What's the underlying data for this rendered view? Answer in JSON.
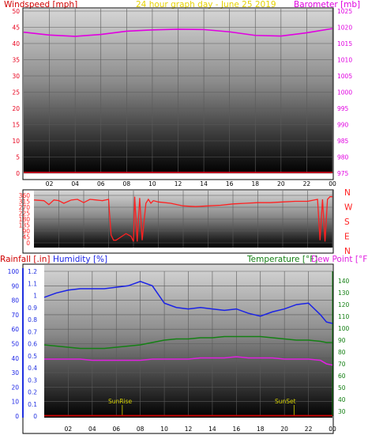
{
  "header": {
    "left_label": "Windspeed [mph]",
    "center_label": "24 hour graph day - June 25 2019",
    "right_label": "Barometer [mb]"
  },
  "colors": {
    "wind": "#e8001c",
    "barometer": "#e100e1",
    "title": "#e6d200",
    "direction": "#ff2020",
    "humidity": "#1a22e6",
    "temperature": "#148014",
    "dewpoint": "#e020e0",
    "rainfall": "#d00000",
    "rainfall_axis": "#2030e0",
    "sun": "#d6d200"
  },
  "bottom_header": {
    "rainfall_label": "Rainfall [.in]",
    "humidity_label": "Humidity [%]",
    "temperature_label": "Temperature [°F]",
    "dewpoint_label": "Dew Point [°F]"
  },
  "sun_labels": {
    "sunrise": "SunRise",
    "sunset": "SunSet"
  },
  "time_ticks": [
    "02",
    "04",
    "06",
    "08",
    "10",
    "12",
    "14",
    "16",
    "18",
    "20",
    "22",
    "00"
  ],
  "chart_data": [
    {
      "type": "line",
      "x_hours": [
        0,
        2,
        4,
        6,
        8,
        10,
        12,
        14,
        16,
        18,
        20,
        22,
        24
      ],
      "series": [
        {
          "name": "Barometer [mb]",
          "axis": "right",
          "values": [
            1018.5,
            1017.6,
            1017.2,
            1017.8,
            1018.8,
            1019.2,
            1019.4,
            1019.3,
            1018.6,
            1017.5,
            1017.3,
            1018.3,
            1019.6
          ]
        },
        {
          "name": "Windspeed [mph]",
          "axis": "left",
          "values": [
            0,
            0,
            0,
            0,
            0,
            0,
            0,
            0,
            0,
            0,
            0,
            0,
            0
          ]
        }
      ],
      "left_axis": {
        "label": "Windspeed [mph]",
        "ticks": [
          0,
          5,
          10,
          15,
          20,
          25,
          30,
          35,
          40,
          45,
          50
        ],
        "range": [
          0,
          50
        ]
      },
      "right_axis": {
        "label": "Barometer [mb]",
        "ticks": [
          975,
          980,
          985,
          990,
          995,
          1000,
          1005,
          1010,
          1015,
          1020,
          1025
        ],
        "range": [
          975,
          1025
        ]
      },
      "title": "24 hour graph day - June 25 2019"
    },
    {
      "type": "line",
      "x_hours": [
        0,
        0.8,
        1.2,
        1.6,
        2.0,
        2.4,
        3.0,
        3.5,
        4.0,
        4.5,
        5.0,
        5.5,
        6.0,
        6.2,
        6.4,
        6.6,
        7.0,
        7.4,
        7.8,
        8.0,
        8.1,
        8.3,
        8.5,
        8.7,
        9.0,
        9.2,
        9.4,
        9.6,
        10,
        11,
        12,
        13,
        14,
        15,
        16,
        17,
        18,
        19,
        20,
        21,
        22,
        22.8,
        23.0,
        23.2,
        23.4,
        23.6,
        23.8,
        24
      ],
      "series": [
        {
          "name": "Wind Direction",
          "values": [
            325,
            320,
            290,
            325,
            320,
            300,
            325,
            330,
            305,
            330,
            325,
            320,
            330,
            60,
            20,
            20,
            45,
            70,
            50,
            10,
            350,
            10,
            340,
            20,
            300,
            330,
            300,
            320,
            310,
            300,
            280,
            275,
            280,
            285,
            295,
            300,
            305,
            305,
            310,
            315,
            315,
            330,
            20,
            330,
            10,
            330,
            350,
            350
          ]
        }
      ],
      "left_axis": {
        "ticks": [
          0,
          45,
          90,
          135,
          180,
          225,
          270,
          315,
          360
        ],
        "range": [
          0,
          360
        ]
      },
      "right_axis": {
        "labels": [
          "N",
          "W",
          "S",
          "E",
          "N"
        ]
      }
    },
    {
      "type": "line",
      "x_hours": [
        0,
        1,
        2,
        3,
        4,
        5,
        6,
        7,
        8,
        9,
        10,
        11,
        12,
        13,
        14,
        15,
        16,
        17,
        18,
        19,
        20,
        21,
        22,
        23,
        23.5,
        24
      ],
      "series": [
        {
          "name": "Humidity [%]",
          "axis": "left_humidity",
          "values": [
            82,
            85,
            87,
            88,
            88,
            88,
            89,
            90,
            93,
            90,
            78,
            75,
            74,
            75,
            74,
            73,
            74,
            71,
            69,
            72,
            74,
            77,
            78,
            70,
            65,
            64
          ]
        },
        {
          "name": "Temperature [°F]",
          "axis": "right",
          "values": [
            86,
            85,
            84,
            83,
            83,
            83,
            84,
            85,
            86,
            88,
            90,
            91,
            91,
            92,
            92,
            93,
            93,
            93,
            93,
            92,
            91,
            90,
            90,
            89,
            88,
            88
          ]
        },
        {
          "name": "Dew Point [°F]",
          "axis": "right",
          "values": [
            74,
            74,
            74,
            74,
            73,
            73,
            73,
            73,
            73,
            74,
            74,
            74,
            74,
            75,
            75,
            75,
            76,
            75,
            75,
            75,
            74,
            74,
            74,
            73,
            70,
            69
          ]
        },
        {
          "name": "Rainfall [.in]",
          "axis": "left_rain",
          "values": [
            0,
            0,
            0,
            0,
            0,
            0,
            0,
            0,
            0,
            0,
            0,
            0,
            0,
            0,
            0,
            0,
            0,
            0,
            0,
            0,
            0,
            0,
            0,
            0,
            0,
            0
          ]
        }
      ],
      "humidity_axis": {
        "label": "Humidity [%]",
        "ticks": [
          0,
          10,
          20,
          30,
          40,
          50,
          60,
          70,
          80,
          90,
          100
        ],
        "range": [
          0,
          100
        ]
      },
      "rain_axis": {
        "label": "Rainfall [.in]",
        "ticks": [
          0,
          0.1,
          0.2,
          0.3,
          0.4,
          0.5,
          0.6,
          0.7,
          0.8,
          0.9,
          1,
          1.1,
          1.2
        ],
        "range": [
          0,
          1.2
        ]
      },
      "right_axis": {
        "ticks": [
          30,
          40,
          50,
          60,
          70,
          80,
          90,
          100,
          110,
          120,
          130,
          140
        ],
        "range": [
          26,
          148
        ]
      },
      "annotations": [
        "SunRise",
        "SunSet"
      ]
    }
  ]
}
